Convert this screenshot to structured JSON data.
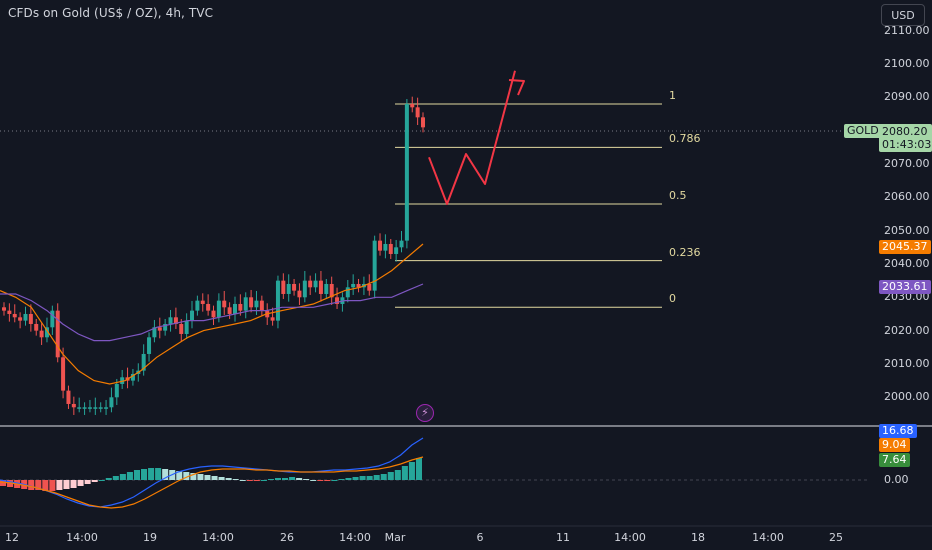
{
  "chart_title": "CFDs on Gold (US$ / OZ), 4h, TVC",
  "currency_button": "USD",
  "symbol_label": "GOLD",
  "price_axis": [
    "2110.00",
    "2100.00",
    "2090.00",
    "2080.00",
    "2070.00",
    "2060.00",
    "2050.00",
    "2040.00",
    "2030.00",
    "2020.00",
    "2010.00",
    "2000.00"
  ],
  "time_axis": [
    "12",
    "14:00",
    "19",
    "14:00",
    "26",
    "14:00",
    "Mar",
    "6",
    "11",
    "14:00",
    "18",
    "14:00",
    "25"
  ],
  "fib_levels": [
    {
      "label": "1",
      "price": 2088
    },
    {
      "label": "0.786",
      "price": 2075
    },
    {
      "label": "0.5",
      "price": 2058
    },
    {
      "label": "0.236",
      "price": 2041
    },
    {
      "label": "0",
      "price": 2027
    }
  ],
  "price_tags": {
    "last_price": "2080.20",
    "countdown": "01:43:03",
    "ema_fast": "2045.37",
    "ema_slow": "2033.61"
  },
  "macd": {
    "macd_value": "16.68",
    "signal_value": "9.04",
    "hist_value": "7.64",
    "zero_label": "0.00"
  },
  "colors": {
    "background": "#131722",
    "up": "#26a69a",
    "down": "#ef5350",
    "fib": "#e2d9a0",
    "ema_fast": "#f57c00",
    "ema_slow": "#7e57c2",
    "macd": "#2962ff",
    "projection": "#f23645",
    "last_price_tag": "#a5d6a7"
  },
  "icons": {
    "event_marker": "lightning-bolt-icon"
  },
  "chart_data": {
    "type": "candlestick",
    "title": "CFDs on Gold (US$ / OZ), 4h, TVC",
    "ylim": [
      1996,
      2114
    ],
    "x_ticks": [
      "12",
      "14:00",
      "19",
      "14:00",
      "26",
      "14:00",
      "Mar",
      "6",
      "11",
      "14:00",
      "18",
      "14:00",
      "25"
    ],
    "y_ticks": [
      2000,
      2010,
      2020,
      2030,
      2040,
      2050,
      2060,
      2070,
      2080,
      2090,
      2100,
      2110
    ],
    "last_price": 2080.2,
    "series": [
      {
        "name": "GOLD",
        "values": [
          2026,
          2025,
          2024,
          2023,
          2025,
          2022,
          2020,
          2018,
          2021,
          2026,
          2012,
          2002,
          1998,
          1997,
          1997,
          1997,
          1997,
          1997,
          1997,
          1997,
          2000,
          2004,
          2006,
          2005,
          2007,
          2008,
          2013,
          2018,
          2021,
          2020,
          2022,
          2024,
          2022,
          2019,
          2023,
          2026,
          2029,
          2028,
          2026,
          2024,
          2029,
          2027,
          2025,
          2028,
          2026,
          2030,
          2027,
          2029,
          2026,
          2024,
          2023,
          2035,
          2031,
          2034,
          2032,
          2030,
          2035,
          2033,
          2035,
          2031,
          2034,
          2030,
          2028,
          2030,
          2033,
          2034,
          2033,
          2034,
          2032,
          2047,
          2044,
          2046,
          2043,
          2045,
          2047,
          2088,
          2087,
          2084,
          2081
        ]
      },
      {
        "name": "EMA fast",
        "values": [
          2032,
          2030,
          2027,
          2020,
          2013,
          2008,
          2005,
          2004,
          2005,
          2008,
          2012,
          2015,
          2018,
          2020,
          2021,
          2022,
          2023,
          2025,
          2026,
          2027,
          2028,
          2030,
          2032,
          2033,
          2035,
          2038,
          2042,
          2046
        ]
      },
      {
        "name": "EMA slow",
        "values": [
          2031,
          2031,
          2029,
          2026,
          2022,
          2019,
          2017,
          2017,
          2018,
          2019,
          2021,
          2022,
          2023,
          2023,
          2024,
          2025,
          2026,
          2026,
          2027,
          2027,
          2027,
          2028,
          2029,
          2029,
          2030,
          2030,
          2032,
          2034
        ]
      }
    ],
    "projection_path": [
      [
        2072
      ],
      [
        2058
      ],
      [
        2073
      ],
      [
        2064
      ],
      [
        2098
      ]
    ]
  }
}
